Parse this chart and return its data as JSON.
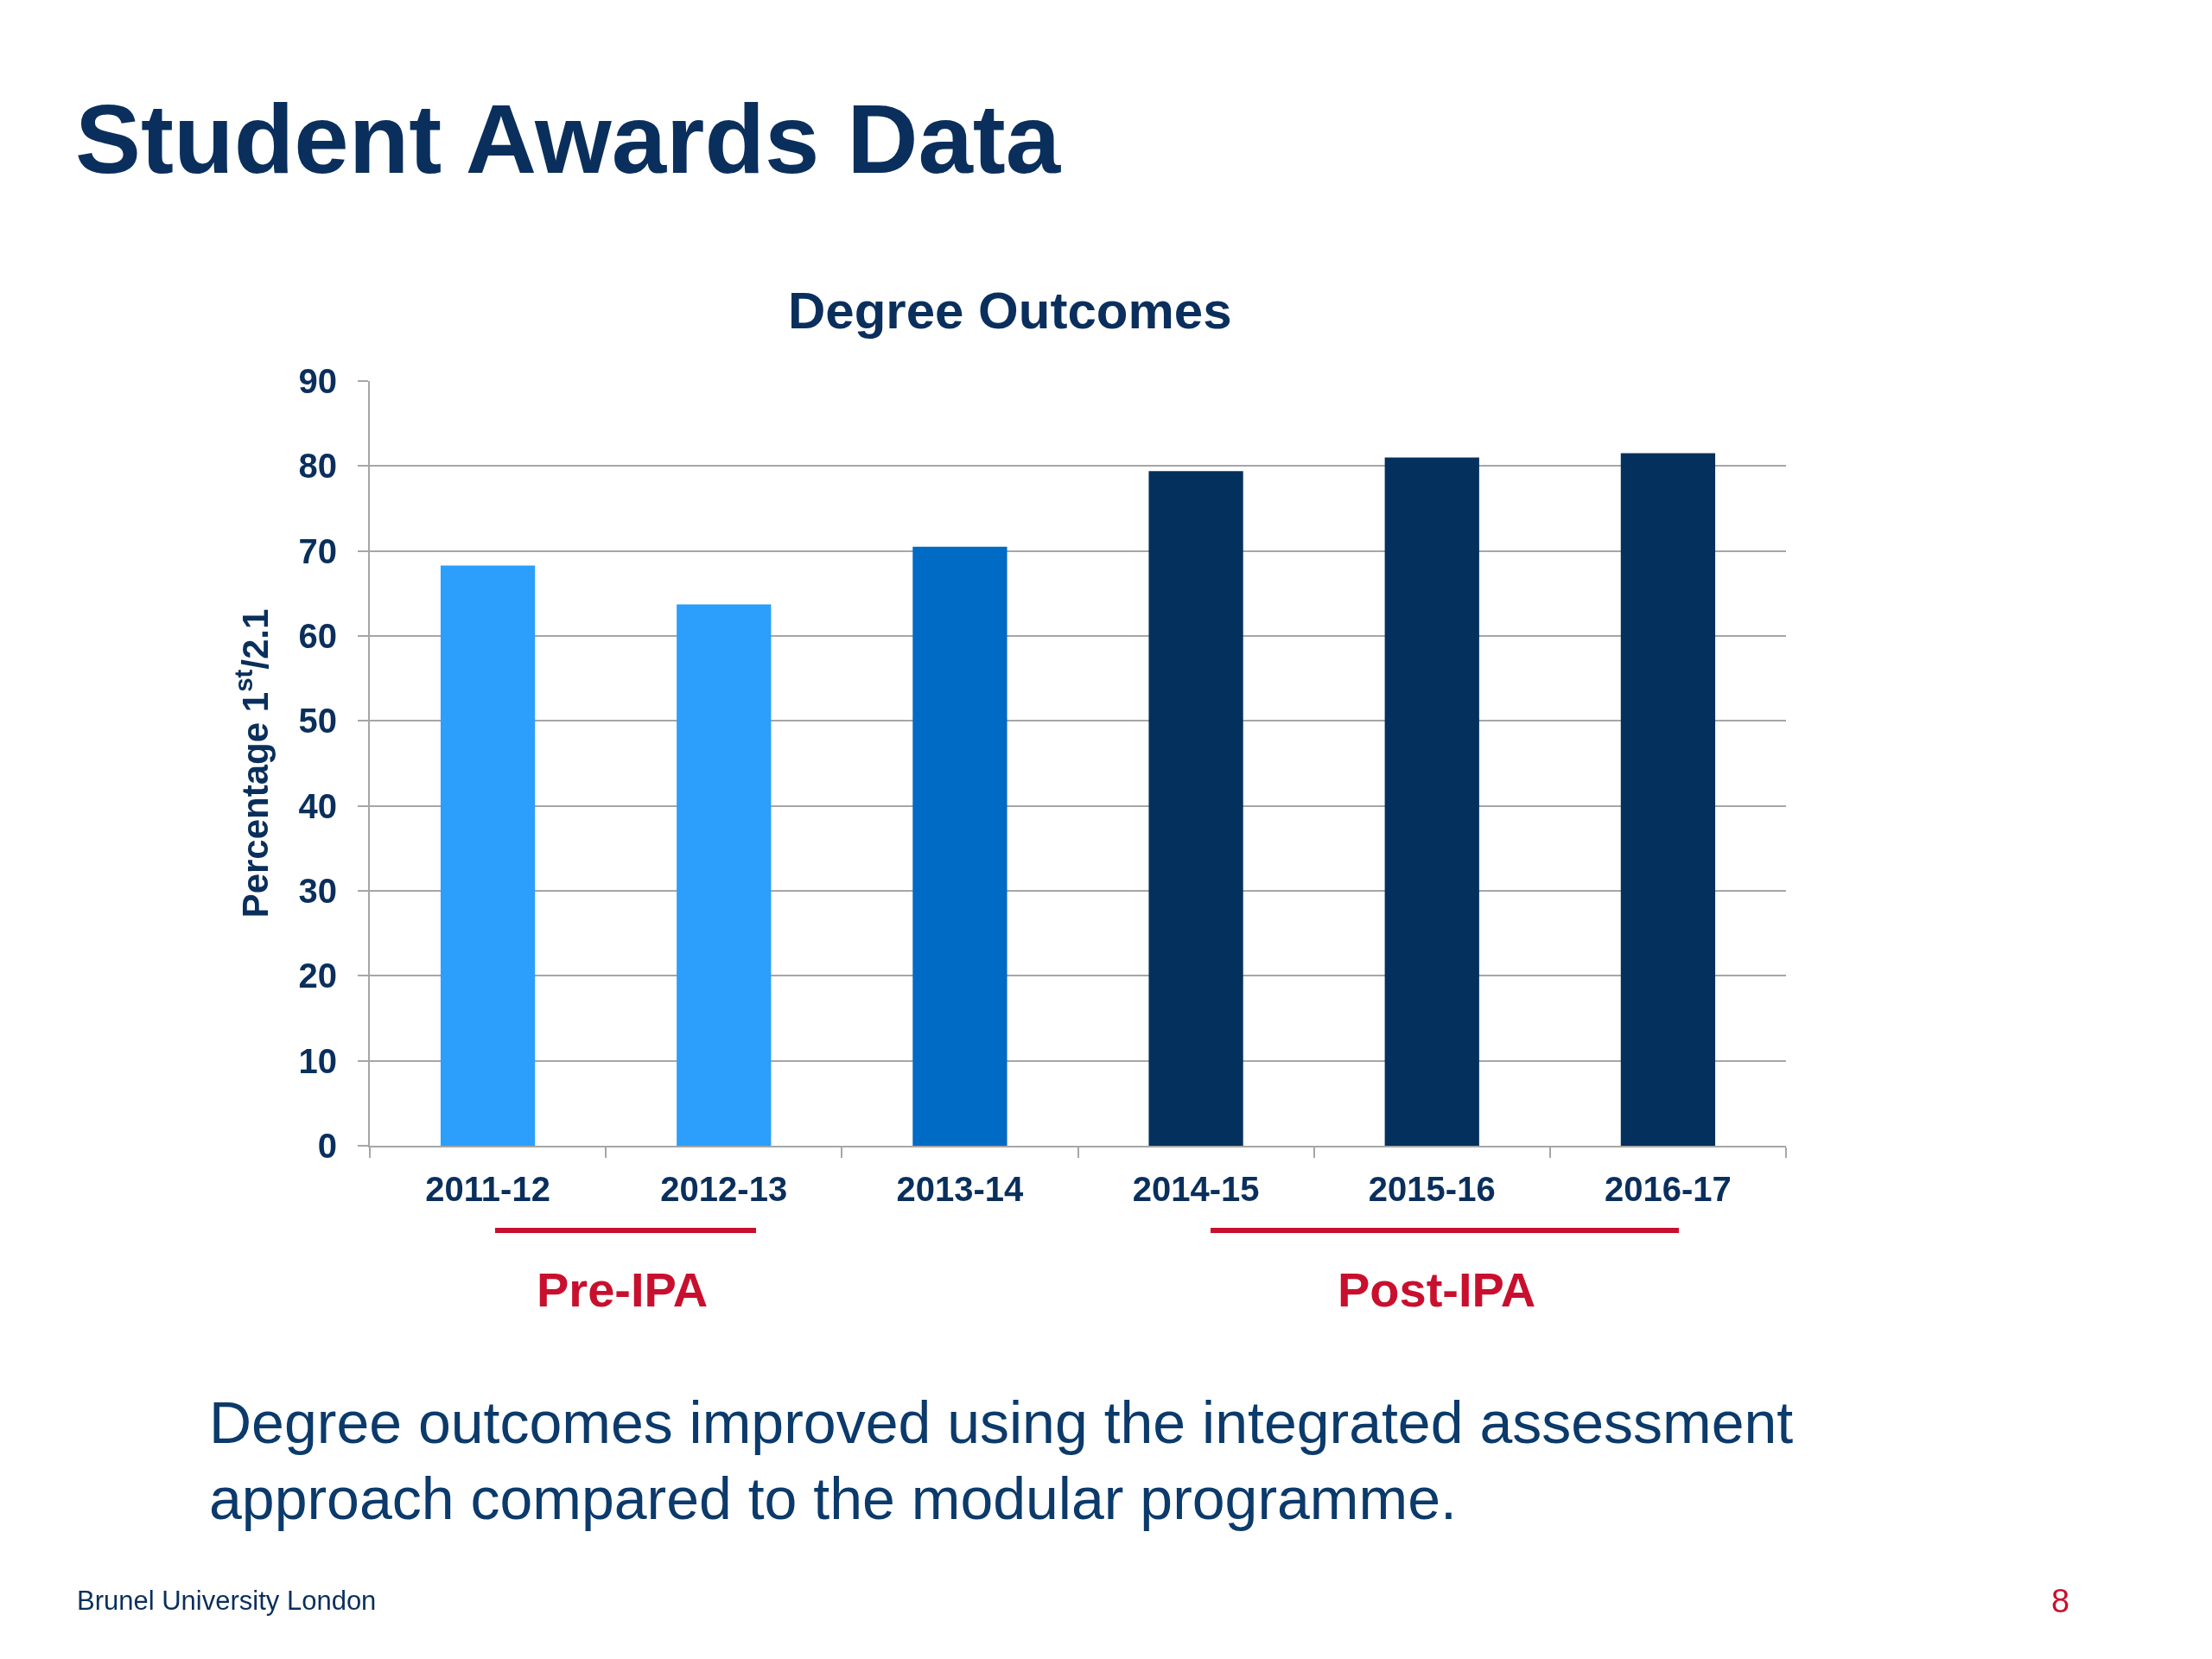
{
  "chart_data": {
    "type": "bar",
    "title": "Student Awards Data",
    "subtitle": "Degree Outcomes",
    "ylabel": "Percentage 1$^{st}$/2.1",
    "categories": [
      "2011-12",
      "2012-13",
      "2013-14",
      "2014-15",
      "2015-16",
      "2016-17"
    ],
    "values": [
      68.3,
      63.7,
      70.5,
      79.4,
      81.0,
      81.5
    ],
    "colors": [
      "#2b9ffb",
      "#2b9ffb",
      "#006bc4",
      "#03305c",
      "#03305c",
      "#03305c"
    ],
    "ylim": [
      0,
      90
    ],
    "yticks": [
      0,
      10,
      20,
      30,
      40,
      50,
      60,
      70,
      80,
      90
    ],
    "grid": "y",
    "annotations": [
      "Pre-IPA",
      "Post-IPA",
      "Degree outcomes improved using the integrated assessment approach compared to the modular programme.",
      "Brunel University London",
      "8"
    ]
  }
}
